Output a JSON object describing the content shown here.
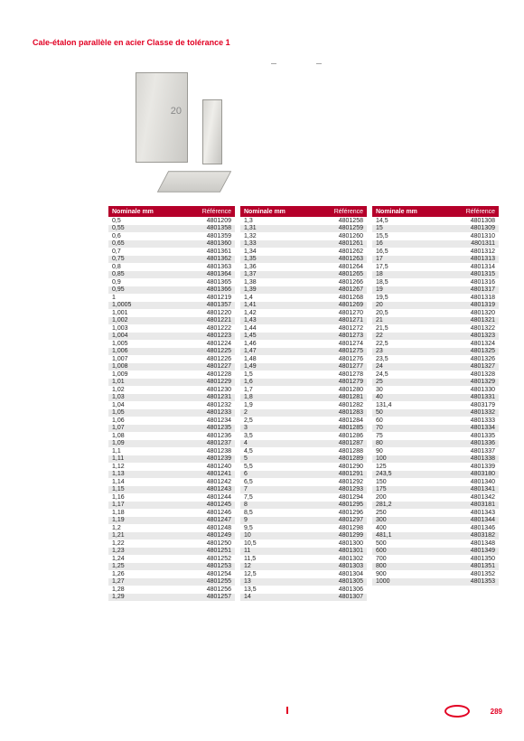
{
  "title": "Cale-étalon parallèle en acier Classe de tolérance 1",
  "column_labels": {
    "a": "—",
    "b": "—"
  },
  "header": {
    "nominal": "Nominale mm",
    "reference": "Référence"
  },
  "page_number": "289",
  "tables": [
    [
      [
        "0,5",
        "4801209"
      ],
      [
        "0,55",
        "4801358"
      ],
      [
        "0,6",
        "4801359"
      ],
      [
        "0,65",
        "4801360"
      ],
      [
        "0,7",
        "4801361"
      ],
      [
        "0,75",
        "4801362"
      ],
      [
        "0,8",
        "4801363"
      ],
      [
        "0,85",
        "4801364"
      ],
      [
        "0,9",
        "4801365"
      ],
      [
        "0,95",
        "4801366"
      ],
      [
        "1",
        "4801219"
      ],
      [
        "1,0005",
        "4801357"
      ],
      [
        "1,001",
        "4801220"
      ],
      [
        "1,002",
        "4801221"
      ],
      [
        "1,003",
        "4801222"
      ],
      [
        "1,004",
        "4801223"
      ],
      [
        "1,005",
        "4801224"
      ],
      [
        "1,006",
        "4801225"
      ],
      [
        "1,007",
        "4801226"
      ],
      [
        "1,008",
        "4801227"
      ],
      [
        "1,009",
        "4801228"
      ],
      [
        "1,01",
        "4801229"
      ],
      [
        "1,02",
        "4801230"
      ],
      [
        "1,03",
        "4801231"
      ],
      [
        "1,04",
        "4801232"
      ],
      [
        "1,05",
        "4801233"
      ],
      [
        "1,06",
        "4801234"
      ],
      [
        "1,07",
        "4801235"
      ],
      [
        "1,08",
        "4801236"
      ],
      [
        "1,09",
        "4801237"
      ],
      [
        "1,1",
        "4801238"
      ],
      [
        "1,11",
        "4801239"
      ],
      [
        "1,12",
        "4801240"
      ],
      [
        "1,13",
        "4801241"
      ],
      [
        "1,14",
        "4801242"
      ],
      [
        "1,15",
        "4801243"
      ],
      [
        "1,16",
        "4801244"
      ],
      [
        "1,17",
        "4801245"
      ],
      [
        "1,18",
        "4801246"
      ],
      [
        "1,19",
        "4801247"
      ],
      [
        "1,2",
        "4801248"
      ],
      [
        "1,21",
        "4801249"
      ],
      [
        "1,22",
        "4801250"
      ],
      [
        "1,23",
        "4801251"
      ],
      [
        "1,24",
        "4801252"
      ],
      [
        "1,25",
        "4801253"
      ],
      [
        "1,26",
        "4801254"
      ],
      [
        "1,27",
        "4801255"
      ],
      [
        "1,28",
        "4801256"
      ],
      [
        "1,29",
        "4801257"
      ]
    ],
    [
      [
        "1,3",
        "4801258"
      ],
      [
        "1,31",
        "4801259"
      ],
      [
        "1,32",
        "4801260"
      ],
      [
        "1,33",
        "4801261"
      ],
      [
        "1,34",
        "4801262"
      ],
      [
        "1,35",
        "4801263"
      ],
      [
        "1,36",
        "4801264"
      ],
      [
        "1,37",
        "4801265"
      ],
      [
        "1,38",
        "4801266"
      ],
      [
        "1,39",
        "4801267"
      ],
      [
        "1,4",
        "4801268"
      ],
      [
        "1,41",
        "4801269"
      ],
      [
        "1,42",
        "4801270"
      ],
      [
        "1,43",
        "4801271"
      ],
      [
        "1,44",
        "4801272"
      ],
      [
        "1,45",
        "4801273"
      ],
      [
        "1,46",
        "4801274"
      ],
      [
        "1,47",
        "4801275"
      ],
      [
        "1,48",
        "4801276"
      ],
      [
        "1,49",
        "4801277"
      ],
      [
        "1,5",
        "4801278"
      ],
      [
        "1,6",
        "4801279"
      ],
      [
        "1,7",
        "4801280"
      ],
      [
        "1,8",
        "4801281"
      ],
      [
        "1,9",
        "4801282"
      ],
      [
        "2",
        "4801283"
      ],
      [
        "2,5",
        "4801284"
      ],
      [
        "3",
        "4801285"
      ],
      [
        "3,5",
        "4801286"
      ],
      [
        "4",
        "4801287"
      ],
      [
        "4,5",
        "4801288"
      ],
      [
        "5",
        "4801289"
      ],
      [
        "5,5",
        "4801290"
      ],
      [
        "6",
        "4801291"
      ],
      [
        "6,5",
        "4801292"
      ],
      [
        "7",
        "4801293"
      ],
      [
        "7,5",
        "4801294"
      ],
      [
        "8",
        "4801295"
      ],
      [
        "8,5",
        "4801296"
      ],
      [
        "9",
        "4801297"
      ],
      [
        "9,5",
        "4801298"
      ],
      [
        "10",
        "4801299"
      ],
      [
        "10,5",
        "4801300"
      ],
      [
        "11",
        "4801301"
      ],
      [
        "11,5",
        "4801302"
      ],
      [
        "12",
        "4801303"
      ],
      [
        "12,5",
        "4801304"
      ],
      [
        "13",
        "4801305"
      ],
      [
        "13,5",
        "4801306"
      ],
      [
        "14",
        "4801307"
      ]
    ],
    [
      [
        "14,5",
        "4801308"
      ],
      [
        "15",
        "4801309"
      ],
      [
        "15,5",
        "4801310"
      ],
      [
        "16",
        "4801311"
      ],
      [
        "16,5",
        "4801312"
      ],
      [
        "17",
        "4801313"
      ],
      [
        "17,5",
        "4801314"
      ],
      [
        "18",
        "4801315"
      ],
      [
        "18,5",
        "4801316"
      ],
      [
        "19",
        "4801317"
      ],
      [
        "19,5",
        "4801318"
      ],
      [
        "20",
        "4801319"
      ],
      [
        "20,5",
        "4801320"
      ],
      [
        "21",
        "4801321"
      ],
      [
        "21,5",
        "4801322"
      ],
      [
        "22",
        "4801323"
      ],
      [
        "22,5",
        "4801324"
      ],
      [
        "23",
        "4801325"
      ],
      [
        "23,5",
        "4801326"
      ],
      [
        "24",
        "4801327"
      ],
      [
        "24,5",
        "4801328"
      ],
      [
        "25",
        "4801329"
      ],
      [
        "30",
        "4801330"
      ],
      [
        "40",
        "4801331"
      ],
      [
        "131,4",
        "4803179"
      ],
      [
        "50",
        "4801332"
      ],
      [
        "60",
        "4801333"
      ],
      [
        "70",
        "4801334"
      ],
      [
        "75",
        "4801335"
      ],
      [
        "80",
        "4801336"
      ],
      [
        "90",
        "4801337"
      ],
      [
        "100",
        "4801338"
      ],
      [
        "125",
        "4801339"
      ],
      [
        "243,5",
        "4803180"
      ],
      [
        "150",
        "4801340"
      ],
      [
        "175",
        "4801341"
      ],
      [
        "200",
        "4801342"
      ],
      [
        "281,2",
        "4803181"
      ],
      [
        "250",
        "4801343"
      ],
      [
        "300",
        "4801344"
      ],
      [
        "400",
        "4801346"
      ],
      [
        "481,1",
        "4803182"
      ],
      [
        "500",
        "4801348"
      ],
      [
        "600",
        "4801349"
      ],
      [
        "700",
        "4801350"
      ],
      [
        "800",
        "4801351"
      ],
      [
        "900",
        "4801352"
      ],
      [
        "1000",
        "4801353"
      ]
    ]
  ]
}
